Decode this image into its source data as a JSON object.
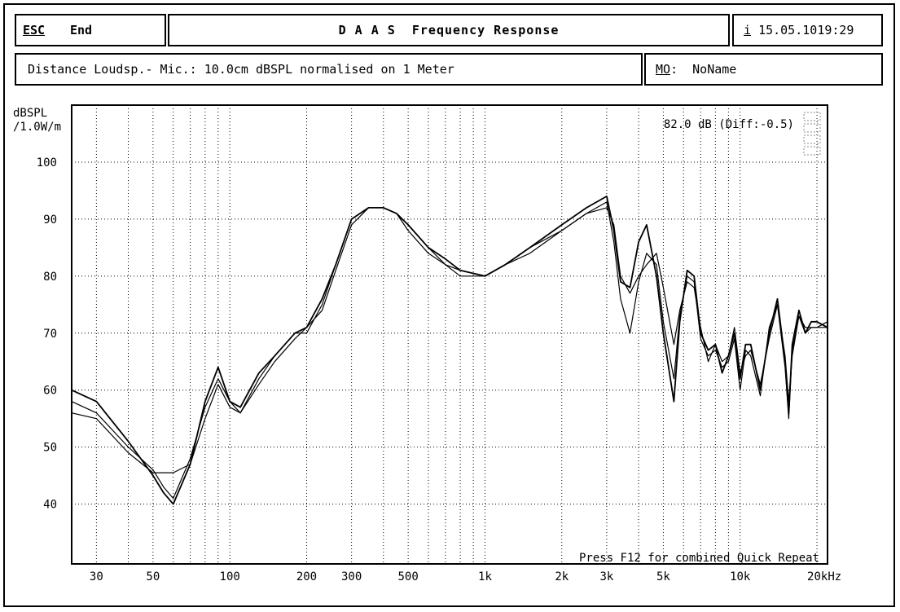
{
  "header": {
    "esc_label": "ESC",
    "end_label": "End",
    "title": "D A A S  Frequency Response",
    "info_key": "i",
    "timestamp": "15.05.10",
    "clock": "19:29"
  },
  "subheader": {
    "description": "Distance Loudsp.- Mic.: 10.0cm dBSPL normalised on 1 Meter",
    "mo_key": "MO",
    "mo_sep": ":",
    "mo_value": "NoName"
  },
  "chart_data": {
    "type": "line",
    "ylabel_line1": "dBSPL",
    "ylabel_line2": "/1.0W/m",
    "x_unit": "Hz",
    "xscale": "log",
    "xlim": [
      24,
      22000
    ],
    "ylim": [
      29.5,
      110
    ],
    "yticks": [
      40,
      50,
      60,
      70,
      80,
      90,
      100
    ],
    "xticks": [
      {
        "value": 30,
        "label": "30"
      },
      {
        "value": 50,
        "label": "50"
      },
      {
        "value": 100,
        "label": "100"
      },
      {
        "value": 200,
        "label": "200"
      },
      {
        "value": 300,
        "label": "300"
      },
      {
        "value": 500,
        "label": "500"
      },
      {
        "value": 1000,
        "label": "1k"
      },
      {
        "value": 2000,
        "label": "2k"
      },
      {
        "value": 3000,
        "label": "3k"
      },
      {
        "value": 5000,
        "label": "5k"
      },
      {
        "value": 10000,
        "label": "10k"
      },
      {
        "value": 20000,
        "label": "20kHz"
      }
    ],
    "grid": true,
    "annotation": "82.0 dB (Diff:-0.5)",
    "footer_note": "Press F12 for combined Quick Repeat",
    "series": [
      {
        "x": [
          24,
          30,
          40,
          50,
          55,
          60,
          70,
          80,
          90,
          100,
          110,
          130,
          150,
          180,
          200,
          230,
          260,
          300,
          350,
          400,
          450,
          500,
          600,
          700,
          800,
          1000,
          1200,
          1500,
          2000,
          2500,
          3000,
          3200,
          3400,
          3700,
          4000,
          4300,
          4700,
          5000,
          5500,
          5800,
          6200,
          6600,
          7000,
          7500,
          8000,
          8500,
          9000,
          9500,
          10000,
          10500,
          11000,
          12000,
          13000,
          14000,
          15000,
          15500,
          16000,
          17000,
          18000,
          19000,
          20000,
          22000
        ],
        "y": [
          60,
          58,
          51,
          45,
          42,
          40,
          47,
          58,
          64,
          58,
          57,
          63,
          66,
          70,
          71,
          76,
          82,
          90,
          92,
          92,
          91,
          89,
          85,
          83,
          81,
          80,
          82,
          85,
          89,
          92,
          94,
          88,
          79,
          78,
          86,
          89,
          80,
          70,
          58,
          72,
          81,
          80,
          70,
          67,
          68,
          63,
          66,
          70,
          62,
          68,
          68,
          60,
          70,
          76,
          65,
          56,
          68,
          74,
          70,
          72,
          72,
          71
        ]
      },
      {
        "x": [
          24,
          30,
          40,
          50,
          55,
          60,
          70,
          80,
          90,
          100,
          110,
          130,
          150,
          180,
          200,
          230,
          260,
          300,
          350,
          400,
          450,
          500,
          600,
          700,
          800,
          1000,
          1200,
          1500,
          2000,
          2500,
          3000,
          3200,
          3400,
          3700,
          4000,
          4300,
          4700,
          5000,
          5500,
          5800,
          6200,
          6600,
          7000,
          7500,
          8000,
          8500,
          9000,
          9500,
          10000,
          10500,
          11000,
          12000,
          13000,
          14000,
          15000,
          15500,
          16000,
          17000,
          18000,
          19000,
          20000,
          22000
        ],
        "y": [
          58,
          56,
          50,
          46,
          43,
          41,
          48,
          57,
          62,
          58,
          56,
          62,
          66,
          70,
          70,
          75,
          82,
          90,
          92,
          92,
          91,
          89,
          85,
          82,
          81,
          80,
          82,
          85,
          88,
          91,
          93,
          86,
          76,
          70,
          79,
          84,
          82,
          72,
          62,
          73,
          80,
          79,
          69,
          66,
          67,
          64,
          65,
          69,
          60,
          67,
          66,
          59,
          71,
          75,
          64,
          55,
          67,
          73,
          70,
          71,
          71,
          71
        ]
      },
      {
        "x": [
          24,
          30,
          40,
          50,
          55,
          60,
          70,
          80,
          90,
          100,
          110,
          130,
          150,
          180,
          200,
          230,
          260,
          300,
          350,
          400,
          450,
          500,
          600,
          700,
          800,
          1000,
          1200,
          1500,
          2000,
          2500,
          3000,
          3200,
          3400,
          3700,
          4000,
          4300,
          4700,
          5000,
          5500,
          5800,
          6200,
          6600,
          7000,
          7500,
          8000,
          8500,
          9000,
          9500,
          10000,
          10500,
          11000,
          12000,
          13000,
          14000,
          15000,
          15500,
          16000,
          17000,
          18000,
          19000,
          20000,
          22000
        ],
        "y": [
          56,
          55,
          49,
          45.5,
          45.5,
          45.5,
          47,
          55,
          61,
          57,
          56,
          61,
          65,
          69,
          71,
          74,
          81,
          89,
          92,
          92,
          91,
          88,
          84,
          82,
          80,
          80,
          82,
          84,
          88,
          91,
          92,
          89,
          80,
          77,
          80,
          82,
          84,
          78,
          68,
          74,
          79,
          78,
          71,
          65,
          68,
          65,
          66,
          71,
          63,
          66,
          67,
          61,
          69,
          75,
          66,
          58,
          66,
          73,
          71,
          71,
          71,
          72
        ]
      }
    ]
  }
}
